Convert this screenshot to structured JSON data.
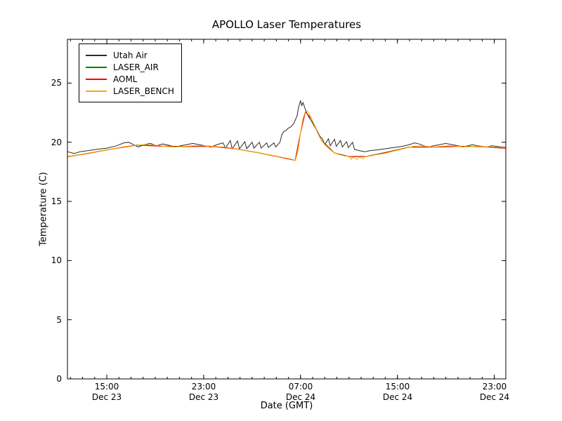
{
  "chart_data": {
    "type": "line",
    "title": "APOLLO Laser Temperatures",
    "xlabel": "Date (GMT)",
    "ylabel": "Temperature (C)",
    "x_unit": "hours since Dec 23 00:00 GMT",
    "xlim": [
      11.75,
      47.95
    ],
    "ylim": [
      0,
      28.7
    ],
    "grid": false,
    "legend_position": "upper left",
    "y_ticks": [
      0,
      5,
      10,
      15,
      20,
      25
    ],
    "x_ticks": [
      {
        "value": 15,
        "time": "15:00",
        "date": "Dec 23"
      },
      {
        "value": 23,
        "time": "23:00",
        "date": "Dec 23"
      },
      {
        "value": 31,
        "time": "07:00",
        "date": "Dec 24"
      },
      {
        "value": 39,
        "time": "15:00",
        "date": "Dec 24"
      },
      {
        "value": 47,
        "time": "23:00",
        "date": "Dec 24"
      }
    ],
    "series": [
      {
        "name": "Utah Air",
        "color": "#2b2b2b",
        "points": [
          [
            11.75,
            19.2
          ],
          [
            12.3,
            19.05
          ],
          [
            12.8,
            19.2
          ],
          [
            13.5,
            19.3
          ],
          [
            14.2,
            19.4
          ],
          [
            15.0,
            19.5
          ],
          [
            15.8,
            19.7
          ],
          [
            16.4,
            19.95
          ],
          [
            16.8,
            20.0
          ],
          [
            17.2,
            19.8
          ],
          [
            17.6,
            19.6
          ],
          [
            18.1,
            19.8
          ],
          [
            18.6,
            19.9
          ],
          [
            19.1,
            19.7
          ],
          [
            19.6,
            19.85
          ],
          [
            20.1,
            19.75
          ],
          [
            20.6,
            19.6
          ],
          [
            21.1,
            19.7
          ],
          [
            21.6,
            19.8
          ],
          [
            22.1,
            19.9
          ],
          [
            22.6,
            19.8
          ],
          [
            23.1,
            19.7
          ],
          [
            23.6,
            19.6
          ],
          [
            24.1,
            19.8
          ],
          [
            24.6,
            19.95
          ],
          [
            24.8,
            19.5
          ],
          [
            25.2,
            20.15
          ],
          [
            25.35,
            19.45
          ],
          [
            25.8,
            20.1
          ],
          [
            25.95,
            19.45
          ],
          [
            26.4,
            20.05
          ],
          [
            26.55,
            19.45
          ],
          [
            27.0,
            20.0
          ],
          [
            27.15,
            19.5
          ],
          [
            27.6,
            20.0
          ],
          [
            27.75,
            19.5
          ],
          [
            28.2,
            19.95
          ],
          [
            28.35,
            19.55
          ],
          [
            28.8,
            19.95
          ],
          [
            28.95,
            19.6
          ],
          [
            29.3,
            20.0
          ],
          [
            29.45,
            20.6
          ],
          [
            29.6,
            20.9
          ],
          [
            29.8,
            21.0
          ],
          [
            30.0,
            21.2
          ],
          [
            30.2,
            21.3
          ],
          [
            30.45,
            21.6
          ],
          [
            30.7,
            22.2
          ],
          [
            30.85,
            23.0
          ],
          [
            31.0,
            23.5
          ],
          [
            31.1,
            23.1
          ],
          [
            31.2,
            23.35
          ],
          [
            31.35,
            22.9
          ],
          [
            31.5,
            22.5
          ],
          [
            31.7,
            22.1
          ],
          [
            31.9,
            21.8
          ],
          [
            32.1,
            21.4
          ],
          [
            32.4,
            20.9
          ],
          [
            32.6,
            20.5
          ],
          [
            32.8,
            20.3
          ],
          [
            33.0,
            19.8
          ],
          [
            33.3,
            20.3
          ],
          [
            33.45,
            19.7
          ],
          [
            33.8,
            20.25
          ],
          [
            33.95,
            19.65
          ],
          [
            34.3,
            20.15
          ],
          [
            34.45,
            19.6
          ],
          [
            34.8,
            20.05
          ],
          [
            34.95,
            19.55
          ],
          [
            35.3,
            20.0
          ],
          [
            35.45,
            19.4
          ],
          [
            35.8,
            19.3
          ],
          [
            36.3,
            19.2
          ],
          [
            36.8,
            19.3
          ],
          [
            37.3,
            19.35
          ],
          [
            38.0,
            19.45
          ],
          [
            38.7,
            19.55
          ],
          [
            39.4,
            19.65
          ],
          [
            40.0,
            19.8
          ],
          [
            40.4,
            19.95
          ],
          [
            40.8,
            19.85
          ],
          [
            41.2,
            19.7
          ],
          [
            41.6,
            19.6
          ],
          [
            42.0,
            19.7
          ],
          [
            42.5,
            19.8
          ],
          [
            43.0,
            19.9
          ],
          [
            43.5,
            19.8
          ],
          [
            44.0,
            19.7
          ],
          [
            44.4,
            19.6
          ],
          [
            44.8,
            19.7
          ],
          [
            45.2,
            19.8
          ],
          [
            45.6,
            19.7
          ],
          [
            46.0,
            19.65
          ],
          [
            46.4,
            19.6
          ],
          [
            46.8,
            19.7
          ],
          [
            47.2,
            19.65
          ],
          [
            47.6,
            19.6
          ],
          [
            47.95,
            19.55
          ]
        ]
      },
      {
        "name": "LASER_AIR",
        "color": "#008000",
        "points": [
          [
            11.75,
            18.78
          ],
          [
            13.5,
            19.08
          ],
          [
            15.5,
            19.45
          ],
          [
            17.5,
            19.77
          ],
          [
            19.5,
            19.68
          ],
          [
            21.5,
            19.65
          ],
          [
            23.5,
            19.67
          ],
          [
            25.5,
            19.48
          ],
          [
            27.5,
            19.12
          ],
          [
            29.3,
            18.76
          ],
          [
            30.55,
            18.47
          ],
          [
            31.0,
            20.8
          ],
          [
            31.4,
            22.58
          ],
          [
            31.9,
            22.0
          ],
          [
            32.7,
            20.2
          ],
          [
            33.8,
            19.1
          ],
          [
            35.0,
            18.8
          ],
          [
            36.5,
            18.82
          ],
          [
            38.1,
            19.16
          ],
          [
            40.0,
            19.6
          ],
          [
            42.2,
            19.6
          ],
          [
            44.0,
            19.67
          ],
          [
            46.0,
            19.63
          ],
          [
            47.95,
            19.5
          ]
        ]
      },
      {
        "name": "AOML",
        "color": "#ff0000",
        "points": [
          [
            11.75,
            18.76
          ],
          [
            13.5,
            19.06
          ],
          [
            15.5,
            19.43
          ],
          [
            17.5,
            19.75
          ],
          [
            19.5,
            19.66
          ],
          [
            21.5,
            19.63
          ],
          [
            23.5,
            19.65
          ],
          [
            25.5,
            19.46
          ],
          [
            27.5,
            19.1
          ],
          [
            29.3,
            18.74
          ],
          [
            30.55,
            18.46
          ],
          [
            31.0,
            20.78
          ],
          [
            31.4,
            22.56
          ],
          [
            31.9,
            21.98
          ],
          [
            32.7,
            20.18
          ],
          [
            33.8,
            19.08
          ],
          [
            35.0,
            18.78
          ],
          [
            36.5,
            18.8
          ],
          [
            38.1,
            19.14
          ],
          [
            40.0,
            19.58
          ],
          [
            42.2,
            19.58
          ],
          [
            44.0,
            19.65
          ],
          [
            46.0,
            19.61
          ],
          [
            47.95,
            19.48
          ]
        ]
      },
      {
        "name": "LASER_BENCH",
        "color": "#ffa500",
        "points": [
          [
            11.75,
            18.75
          ],
          [
            12.5,
            18.9
          ],
          [
            13.3,
            19.05
          ],
          [
            14.2,
            19.2
          ],
          [
            15.0,
            19.35
          ],
          [
            15.8,
            19.5
          ],
          [
            16.6,
            19.65
          ],
          [
            17.4,
            19.75
          ],
          [
            18.2,
            19.8
          ],
          [
            19.0,
            19.75
          ],
          [
            19.8,
            19.65
          ],
          [
            20.6,
            19.6
          ],
          [
            21.4,
            19.65
          ],
          [
            22.2,
            19.7
          ],
          [
            23.0,
            19.7
          ],
          [
            23.8,
            19.65
          ],
          [
            24.6,
            19.6
          ],
          [
            25.4,
            19.5
          ],
          [
            26.2,
            19.35
          ],
          [
            27.0,
            19.2
          ],
          [
            27.8,
            19.05
          ],
          [
            28.6,
            18.9
          ],
          [
            29.3,
            18.75
          ],
          [
            29.9,
            18.65
          ],
          [
            30.3,
            18.55
          ],
          [
            30.55,
            18.45
          ],
          [
            30.8,
            19.3
          ],
          [
            31.0,
            20.8
          ],
          [
            31.2,
            22.0
          ],
          [
            31.4,
            22.6
          ],
          [
            31.55,
            22.65
          ],
          [
            31.7,
            22.45
          ],
          [
            31.9,
            22.0
          ],
          [
            32.1,
            21.5
          ],
          [
            32.4,
            20.8
          ],
          [
            32.7,
            20.2
          ],
          [
            33.0,
            19.8
          ],
          [
            33.4,
            19.4
          ],
          [
            33.8,
            19.1
          ],
          [
            34.2,
            18.95
          ],
          [
            34.6,
            18.85
          ],
          [
            35.0,
            18.8
          ],
          [
            35.2,
            18.55
          ],
          [
            35.3,
            18.75
          ],
          [
            35.7,
            18.55
          ],
          [
            35.8,
            18.75
          ],
          [
            36.2,
            18.6
          ],
          [
            36.3,
            18.8
          ],
          [
            36.8,
            18.85
          ],
          [
            37.3,
            18.95
          ],
          [
            37.9,
            19.05
          ],
          [
            38.5,
            19.2
          ],
          [
            39.1,
            19.35
          ],
          [
            39.7,
            19.5
          ],
          [
            40.3,
            19.65
          ],
          [
            40.8,
            19.7
          ],
          [
            41.4,
            19.65
          ],
          [
            42.0,
            19.6
          ],
          [
            42.6,
            19.65
          ],
          [
            43.2,
            19.7
          ],
          [
            43.8,
            19.68
          ],
          [
            44.4,
            19.62
          ],
          [
            45.0,
            19.62
          ],
          [
            45.6,
            19.65
          ],
          [
            46.2,
            19.62
          ],
          [
            46.8,
            19.6
          ],
          [
            47.4,
            19.58
          ],
          [
            47.95,
            19.5
          ]
        ]
      }
    ]
  }
}
